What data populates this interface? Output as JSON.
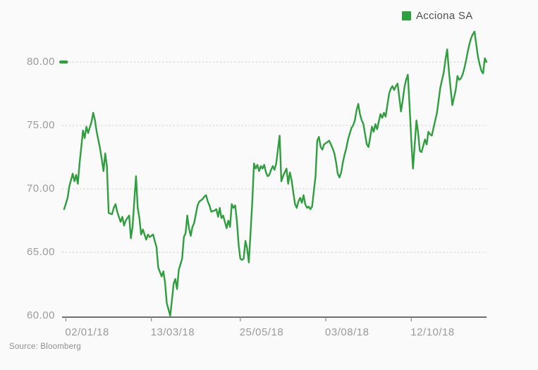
{
  "legend": {
    "label": "Acciona SA",
    "swatch_color": "#2f9e3e"
  },
  "source": {
    "text": "Source: Bloomberg"
  },
  "colors": {
    "background": "#fafafa",
    "line": "#2f9e3e",
    "axis": "#6f6f6f",
    "grid": "#d7d7d7",
    "tick_mark": "#9a9a9a",
    "tick_label": "#9b9b9b",
    "legend_text": "#4f4f4f",
    "source_text": "#8f8f8f",
    "last_price_marker": "#2f9e3e"
  },
  "chart_data": {
    "type": "line",
    "title": "",
    "xlabel": "",
    "ylabel": "",
    "grid": "dotted-horizontal",
    "legend_position": "top-right",
    "x_unit": "trading-day-index",
    "x_range": [
      0,
      247
    ],
    "y_range": [
      60,
      83
    ],
    "y_ticks": [
      {
        "value": 80,
        "label": "80.00"
      },
      {
        "value": 75,
        "label": "75.00"
      },
      {
        "value": 70,
        "label": "70.00"
      },
      {
        "value": 65,
        "label": "65.00"
      },
      {
        "value": 60,
        "label": "60.00"
      }
    ],
    "x_ticks": [
      {
        "pos": 1,
        "label": "02/01/18"
      },
      {
        "pos": 51,
        "label": "13/03/18"
      },
      {
        "pos": 103,
        "label": "25/05/18"
      },
      {
        "pos": 153,
        "label": "03/08/18"
      },
      {
        "pos": 203,
        "label": "12/10/18"
      }
    ],
    "last_price_marker": {
      "value": 80.0
    },
    "series": [
      {
        "name": "Acciona SA",
        "color": "#2f9e3e",
        "points": [
          [
            0,
            68.4
          ],
          [
            2,
            69.3
          ],
          [
            3,
            70.2
          ],
          [
            5,
            71.2
          ],
          [
            6,
            70.6
          ],
          [
            7,
            71.1
          ],
          [
            8,
            70.4
          ],
          [
            9,
            72.0
          ],
          [
            10,
            73.3
          ],
          [
            11,
            74.6
          ],
          [
            12,
            74.0
          ],
          [
            13,
            74.9
          ],
          [
            14,
            74.4
          ],
          [
            16,
            75.3
          ],
          [
            17,
            76.0
          ],
          [
            18,
            75.4
          ],
          [
            19,
            74.5
          ],
          [
            21,
            73.2
          ],
          [
            22,
            72.3
          ],
          [
            23,
            71.4
          ],
          [
            24,
            72.8
          ],
          [
            25,
            71.8
          ],
          [
            26,
            68.1
          ],
          [
            28,
            68.0
          ],
          [
            29,
            68.5
          ],
          [
            30,
            68.8
          ],
          [
            31,
            68.2
          ],
          [
            33,
            67.4
          ],
          [
            34,
            67.8
          ],
          [
            35,
            67.1
          ],
          [
            36,
            67.5
          ],
          [
            38,
            67.9
          ],
          [
            39,
            66.1
          ],
          [
            40,
            67.0
          ],
          [
            41,
            69.0
          ],
          [
            42,
            71.0
          ],
          [
            43,
            68.5
          ],
          [
            44,
            67.7
          ],
          [
            45,
            66.4
          ],
          [
            46,
            66.8
          ],
          [
            48,
            66.0
          ],
          [
            49,
            66.4
          ],
          [
            50,
            66.2
          ],
          [
            52,
            66.4
          ],
          [
            53,
            65.9
          ],
          [
            54,
            65.4
          ],
          [
            55,
            63.8
          ],
          [
            57,
            63.1
          ],
          [
            58,
            63.5
          ],
          [
            59,
            62.6
          ],
          [
            60,
            61.0
          ],
          [
            62,
            60.0
          ],
          [
            63,
            61.2
          ],
          [
            64,
            62.5
          ],
          [
            65,
            62.9
          ],
          [
            66,
            62.1
          ],
          [
            67,
            63.6
          ],
          [
            69,
            64.5
          ],
          [
            70,
            66.2
          ],
          [
            71,
            66.5
          ],
          [
            72,
            67.9
          ],
          [
            73,
            66.9
          ],
          [
            74,
            66.3
          ],
          [
            75,
            67.0
          ],
          [
            76,
            67.3
          ],
          [
            78,
            68.7
          ],
          [
            79,
            69.0
          ],
          [
            81,
            69.2
          ],
          [
            82,
            69.4
          ],
          [
            83,
            69.5
          ],
          [
            84,
            69.0
          ],
          [
            85,
            68.7
          ],
          [
            86,
            68.2
          ],
          [
            88,
            68.3
          ],
          [
            89,
            68.4
          ],
          [
            90,
            67.8
          ],
          [
            91,
            68.5
          ],
          [
            92,
            67.7
          ],
          [
            93,
            67.9
          ],
          [
            95,
            66.9
          ],
          [
            96,
            67.5
          ],
          [
            97,
            67.0
          ],
          [
            98,
            68.8
          ],
          [
            99,
            68.5
          ],
          [
            100,
            68.7
          ],
          [
            101,
            67.5
          ],
          [
            102,
            65.6
          ],
          [
            103,
            64.5
          ],
          [
            104,
            64.4
          ],
          [
            105,
            64.5
          ],
          [
            106,
            65.9
          ],
          [
            107,
            65.3
          ],
          [
            108,
            64.2
          ],
          [
            109,
            66.5
          ],
          [
            110,
            69.0
          ],
          [
            111,
            72.0
          ],
          [
            112,
            71.6
          ],
          [
            113,
            71.9
          ],
          [
            114,
            71.4
          ],
          [
            115,
            71.8
          ],
          [
            116,
            71.6
          ],
          [
            117,
            71.9
          ],
          [
            118,
            71.3
          ],
          [
            119,
            71.0
          ],
          [
            120,
            71.1
          ],
          [
            121,
            71.5
          ],
          [
            122,
            71.8
          ],
          [
            123,
            71.5
          ],
          [
            124,
            72.0
          ],
          [
            126,
            74.2
          ],
          [
            127,
            70.6
          ],
          [
            128,
            71.0
          ],
          [
            130,
            71.6
          ],
          [
            131,
            70.4
          ],
          [
            132,
            71.3
          ],
          [
            133,
            70.7
          ],
          [
            134,
            69.7
          ],
          [
            135,
            68.8
          ],
          [
            136,
            68.5
          ],
          [
            137,
            69.0
          ],
          [
            138,
            69.3
          ],
          [
            139,
            68.9
          ],
          [
            140,
            69.5
          ],
          [
            141,
            68.8
          ],
          [
            142,
            68.5
          ],
          [
            143,
            68.6
          ],
          [
            144,
            68.4
          ],
          [
            145,
            68.6
          ],
          [
            147,
            71.0
          ],
          [
            148,
            73.8
          ],
          [
            149,
            74.1
          ],
          [
            150,
            73.3
          ],
          [
            151,
            73.1
          ],
          [
            152,
            73.5
          ],
          [
            154,
            73.7
          ],
          [
            155,
            73.8
          ],
          [
            156,
            73.5
          ],
          [
            157,
            73.2
          ],
          [
            158,
            72.8
          ],
          [
            159,
            72.1
          ],
          [
            160,
            71.2
          ],
          [
            161,
            70.9
          ],
          [
            162,
            71.3
          ],
          [
            163,
            72.1
          ],
          [
            164,
            72.7
          ],
          [
            165,
            73.2
          ],
          [
            166,
            73.9
          ],
          [
            168,
            74.8
          ],
          [
            169,
            75.0
          ],
          [
            170,
            75.4
          ],
          [
            171,
            76.2
          ],
          [
            172,
            76.7
          ],
          [
            173,
            75.9
          ],
          [
            174,
            75.4
          ],
          [
            175,
            75.1
          ],
          [
            176,
            74.3
          ],
          [
            177,
            73.5
          ],
          [
            178,
            73.3
          ],
          [
            180,
            74.9
          ],
          [
            181,
            74.5
          ],
          [
            182,
            75.1
          ],
          [
            183,
            74.7
          ],
          [
            185,
            75.9
          ],
          [
            186,
            75.6
          ],
          [
            187,
            76.0
          ],
          [
            188,
            75.7
          ],
          [
            190,
            77.5
          ],
          [
            191,
            77.9
          ],
          [
            192,
            78.1
          ],
          [
            193,
            77.8
          ],
          [
            194,
            78.1
          ],
          [
            195,
            78.3
          ],
          [
            196,
            77.2
          ],
          [
            197,
            76.1
          ],
          [
            198,
            77.0
          ],
          [
            199,
            78.0
          ],
          [
            200,
            78.6
          ],
          [
            201,
            79.0
          ],
          [
            202,
            76.5
          ],
          [
            203,
            73.8
          ],
          [
            204,
            71.6
          ],
          [
            206,
            75.4
          ],
          [
            207,
            74.4
          ],
          [
            208,
            73.0
          ],
          [
            209,
            72.9
          ],
          [
            210,
            73.4
          ],
          [
            211,
            73.9
          ],
          [
            212,
            73.5
          ],
          [
            213,
            74.5
          ],
          [
            214,
            74.3
          ],
          [
            215,
            74.2
          ],
          [
            216,
            74.8
          ],
          [
            218,
            76.0
          ],
          [
            219,
            77.0
          ],
          [
            220,
            78.0
          ],
          [
            222,
            79.2
          ],
          [
            223,
            80.2
          ],
          [
            224,
            81.0
          ],
          [
            225,
            79.3
          ],
          [
            226,
            77.9
          ],
          [
            227,
            76.6
          ],
          [
            229,
            77.8
          ],
          [
            230,
            78.9
          ],
          [
            231,
            78.6
          ],
          [
            232,
            78.7
          ],
          [
            233,
            79.0
          ],
          [
            234,
            79.5
          ],
          [
            235,
            80.1
          ],
          [
            236,
            80.8
          ],
          [
            237,
            81.4
          ],
          [
            238,
            81.9
          ],
          [
            239,
            82.2
          ],
          [
            240,
            82.4
          ],
          [
            241,
            81.4
          ],
          [
            242,
            80.4
          ],
          [
            243,
            79.8
          ],
          [
            244,
            79.3
          ],
          [
            245,
            79.1
          ],
          [
            246,
            80.3
          ],
          [
            247,
            80.0
          ]
        ]
      }
    ]
  }
}
